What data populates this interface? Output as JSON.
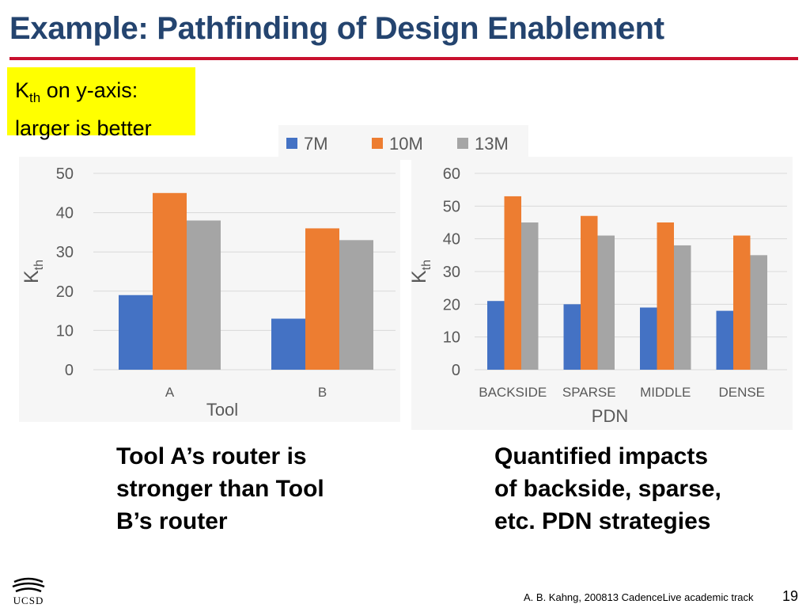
{
  "slide": {
    "title": "Example: Pathfinding of Design Enablement",
    "note_main": "K",
    "note_sub": "th",
    "note_line1_rest": " on y-axis:",
    "note_line2": "larger is better",
    "caption_left": "Tool A’s router is\nstronger than Tool\nB’s router",
    "caption_right": "Quantified impacts\nof backside, sparse,\netc. PDN strategies",
    "footer": "A. B. Kahng, 200813 CadenceLive academic track",
    "page_number": "19",
    "logo_text": "UCSD"
  },
  "colors": {
    "title": "#24446f",
    "rule": "#c8102e",
    "highlight": "#ffff00",
    "series": [
      "#4472c4",
      "#ed7d31",
      "#a5a5a5"
    ]
  },
  "legend": [
    "7M",
    "10M",
    "13M"
  ],
  "chart_data": [
    {
      "type": "bar",
      "title": "",
      "xlabel": "Tool",
      "ylabel_main": "K",
      "ylabel_sub": "th",
      "categories": [
        "A",
        "B"
      ],
      "series": [
        {
          "name": "7M",
          "values": [
            19,
            13
          ]
        },
        {
          "name": "10M",
          "values": [
            45,
            36
          ]
        },
        {
          "name": "13M",
          "values": [
            38,
            33
          ]
        }
      ],
      "ylim": [
        0,
        50
      ],
      "yticks": [
        0,
        10,
        20,
        30,
        40,
        50
      ],
      "grid": true
    },
    {
      "type": "bar",
      "title": "",
      "xlabel": "PDN",
      "ylabel_main": "K",
      "ylabel_sub": "th",
      "categories": [
        "BACKSIDE",
        "SPARSE",
        "MIDDLE",
        "DENSE"
      ],
      "series": [
        {
          "name": "7M",
          "values": [
            21,
            20,
            19,
            18
          ]
        },
        {
          "name": "10M",
          "values": [
            53,
            47,
            45,
            41
          ]
        },
        {
          "name": "13M",
          "values": [
            45,
            41,
            38,
            35
          ]
        }
      ],
      "ylim": [
        0,
        60
      ],
      "yticks": [
        0,
        10,
        20,
        30,
        40,
        50,
        60
      ],
      "grid": true
    }
  ]
}
